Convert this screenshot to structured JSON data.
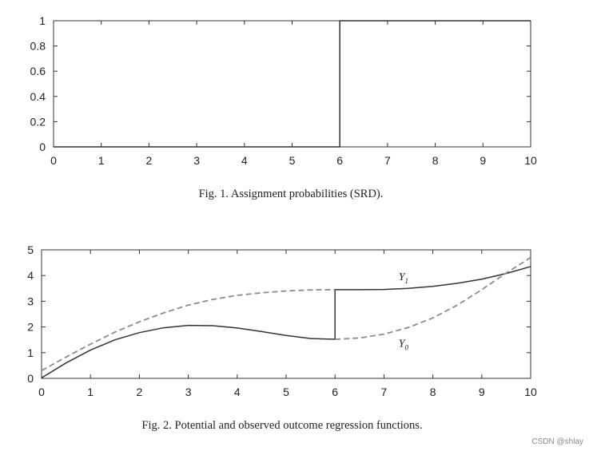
{
  "chart_data": [
    {
      "type": "line",
      "caption": "Fig. 1.  Assignment probabilities (SRD).",
      "xlim": [
        0,
        10
      ],
      "ylim": [
        0,
        1
      ],
      "x_ticks": [
        "0",
        "1",
        "2",
        "3",
        "4",
        "5",
        "6",
        "7",
        "8",
        "9",
        "10"
      ],
      "y_ticks": [
        "0",
        "0.2",
        "0.4",
        "0.6",
        "0.8",
        "1"
      ],
      "grid": false,
      "series": [
        {
          "style": "solid",
          "color": "#333333",
          "x": [
            0,
            6,
            6,
            10
          ],
          "y": [
            0,
            0,
            1,
            1
          ]
        }
      ]
    },
    {
      "type": "line",
      "caption": "Fig. 2.  Potential and observed outcome regression functions.",
      "xlim": [
        0,
        10
      ],
      "ylim": [
        0,
        5
      ],
      "x_ticks": [
        "0",
        "1",
        "2",
        "3",
        "4",
        "5",
        "6",
        "7",
        "8",
        "9",
        "10"
      ],
      "y_ticks": [
        "0",
        "1",
        "2",
        "3",
        "4",
        "5"
      ],
      "grid": false,
      "series": [
        {
          "style": "solid",
          "color": "#333333",
          "x": [
            0,
            0.5,
            1,
            1.5,
            2,
            2.5,
            3,
            3.5,
            4,
            4.5,
            5,
            5.5,
            6,
            6,
            6.5,
            7,
            7.5,
            8,
            8.5,
            9,
            9.5,
            10
          ],
          "y": [
            0.02,
            0.6,
            1.1,
            1.5,
            1.78,
            1.97,
            2.06,
            2.05,
            1.96,
            1.82,
            1.67,
            1.55,
            1.52,
            3.45,
            3.45,
            3.46,
            3.5,
            3.58,
            3.7,
            3.86,
            4.08,
            4.35
          ]
        },
        {
          "style": "dashed",
          "color": "#8c8c8c",
          "x": [
            0,
            0.5,
            1,
            1.5,
            2,
            2.5,
            3,
            3.5,
            4,
            4.5,
            5,
            5.5,
            6
          ],
          "y": [
            0.3,
            0.83,
            1.33,
            1.8,
            2.2,
            2.55,
            2.85,
            3.07,
            3.23,
            3.33,
            3.4,
            3.44,
            3.45
          ]
        },
        {
          "style": "dashed",
          "color": "#8c8c8c",
          "x": [
            6,
            6.5,
            7,
            7.5,
            8,
            8.5,
            9,
            9.5,
            10
          ],
          "y": [
            1.52,
            1.57,
            1.72,
            1.98,
            2.35,
            2.85,
            3.45,
            4.1,
            4.7
          ]
        }
      ],
      "annotations": [
        {
          "text": "Y",
          "subscript": "1",
          "x": 7.3,
          "y": 3.82
        },
        {
          "text": "Y",
          "subscript": "0",
          "x": 7.3,
          "y": 1.22
        }
      ]
    }
  ],
  "watermark": "CSDN @shlay"
}
